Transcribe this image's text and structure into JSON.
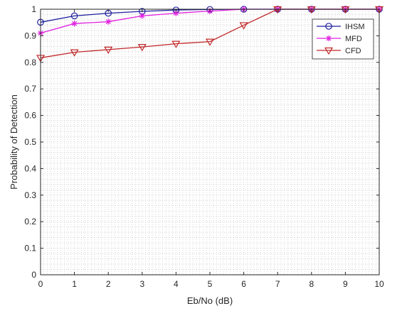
{
  "chart_data": {
    "type": "line",
    "title": "",
    "xlabel": "Eb/No (dB)",
    "ylabel": "Probability of Detection",
    "xlim": [
      0,
      10
    ],
    "ylim": [
      0,
      1
    ],
    "x_ticks": [
      "0",
      "1",
      "2",
      "3",
      "4",
      "5",
      "6",
      "7",
      "8",
      "9",
      "10"
    ],
    "y_ticks": [
      "0",
      "0.1",
      "0.2",
      "0.3",
      "0.4",
      "0.5",
      "0.6",
      "0.7",
      "0.8",
      "0.9",
      "1"
    ],
    "grid": "minor dotted",
    "legend_position": "top-right",
    "x": [
      0,
      1,
      2,
      3,
      4,
      5,
      6,
      7,
      8,
      9,
      10
    ],
    "series": [
      {
        "name": "IHSM",
        "color": "#1f1f9e",
        "marker": "circle",
        "values": [
          0.951,
          0.975,
          0.985,
          0.992,
          0.997,
          0.999,
          1.0,
          1.0,
          1.0,
          1.0,
          1.0
        ]
      },
      {
        "name": "MFD",
        "color": "#e020e0",
        "marker": "asterisk",
        "values": [
          0.91,
          0.946,
          0.953,
          0.975,
          0.985,
          0.993,
          1.0,
          1.0,
          1.0,
          1.0,
          1.0
        ]
      },
      {
        "name": "CFD",
        "color": "#c0282a",
        "marker": "triangle-down",
        "values": [
          0.817,
          0.838,
          0.848,
          0.858,
          0.87,
          0.878,
          0.94,
          1.0,
          1.0,
          1.0,
          1.0
        ]
      }
    ]
  }
}
